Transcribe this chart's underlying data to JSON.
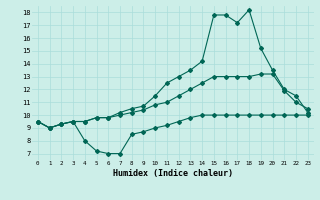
{
  "xlabel": "Humidex (Indice chaleur)",
  "ylabel": "",
  "bg_color": "#cceee8",
  "grid_color": "#aaddda",
  "line_color": "#006655",
  "xlim": [
    -0.5,
    23.5
  ],
  "ylim": [
    6.5,
    18.5
  ],
  "xticks": [
    0,
    1,
    2,
    3,
    4,
    5,
    6,
    7,
    8,
    9,
    10,
    11,
    12,
    13,
    14,
    15,
    16,
    17,
    18,
    19,
    20,
    21,
    22,
    23
  ],
  "yticks": [
    7,
    8,
    9,
    10,
    11,
    12,
    13,
    14,
    15,
    16,
    17,
    18
  ],
  "series": [
    {
      "x": [
        0,
        1,
        2,
        3,
        4,
        5,
        6,
        7,
        8,
        9,
        10,
        11,
        12,
        13,
        14,
        15,
        16,
        17,
        18,
        19,
        20,
        21,
        22,
        23
      ],
      "y": [
        9.5,
        9.0,
        9.3,
        9.5,
        8.0,
        7.2,
        7.0,
        7.0,
        8.5,
        8.7,
        9.0,
        9.2,
        9.5,
        9.8,
        10.0,
        10.0,
        10.0,
        10.0,
        10.0,
        10.0,
        10.0,
        10.0,
        10.0,
        10.0
      ]
    },
    {
      "x": [
        0,
        1,
        2,
        3,
        4,
        5,
        6,
        7,
        8,
        9,
        10,
        11,
        12,
        13,
        14,
        15,
        16,
        17,
        18,
        19,
        20,
        21,
        22,
        23
      ],
      "y": [
        9.5,
        9.0,
        9.3,
        9.5,
        9.5,
        9.8,
        9.8,
        10.0,
        10.2,
        10.4,
        10.8,
        11.0,
        11.5,
        12.0,
        12.5,
        13.0,
        13.0,
        13.0,
        13.0,
        13.2,
        13.2,
        11.9,
        11.0,
        10.5
      ]
    },
    {
      "x": [
        0,
        1,
        2,
        3,
        4,
        5,
        6,
        7,
        8,
        9,
        10,
        11,
        12,
        13,
        14,
        15,
        16,
        17,
        18,
        19,
        20,
        21,
        22,
        23
      ],
      "y": [
        9.5,
        9.0,
        9.3,
        9.5,
        9.5,
        9.8,
        9.8,
        10.2,
        10.5,
        10.7,
        11.5,
        12.5,
        13.0,
        13.5,
        14.2,
        17.8,
        17.8,
        17.2,
        18.2,
        15.2,
        13.5,
        12.0,
        11.5,
        10.2
      ]
    }
  ]
}
